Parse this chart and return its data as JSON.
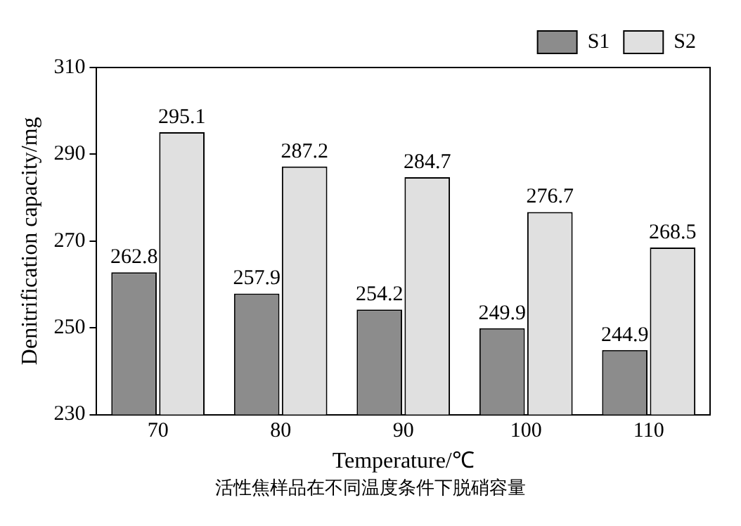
{
  "chart_data": {
    "type": "bar",
    "xlabel": "Temperature/℃",
    "ylabel": "Denitrification capacity/mg",
    "categories": [
      "70",
      "80",
      "90",
      "100",
      "110"
    ],
    "series": [
      {
        "name": "S1",
        "color": "#8c8c8c",
        "values": [
          262.8,
          257.9,
          254.2,
          249.9,
          244.9
        ]
      },
      {
        "name": "S2",
        "color": "#e0e0e0",
        "values": [
          295.1,
          287.2,
          284.7,
          276.7,
          268.5
        ]
      }
    ],
    "ylim": [
      230,
      310
    ],
    "yticks": [
      230,
      250,
      270,
      290,
      310
    ],
    "grid": false,
    "legend": "top right",
    "data_labels": true,
    "annotations": [
      "活性焦样品在不同温度条件下脱硝容量"
    ]
  }
}
